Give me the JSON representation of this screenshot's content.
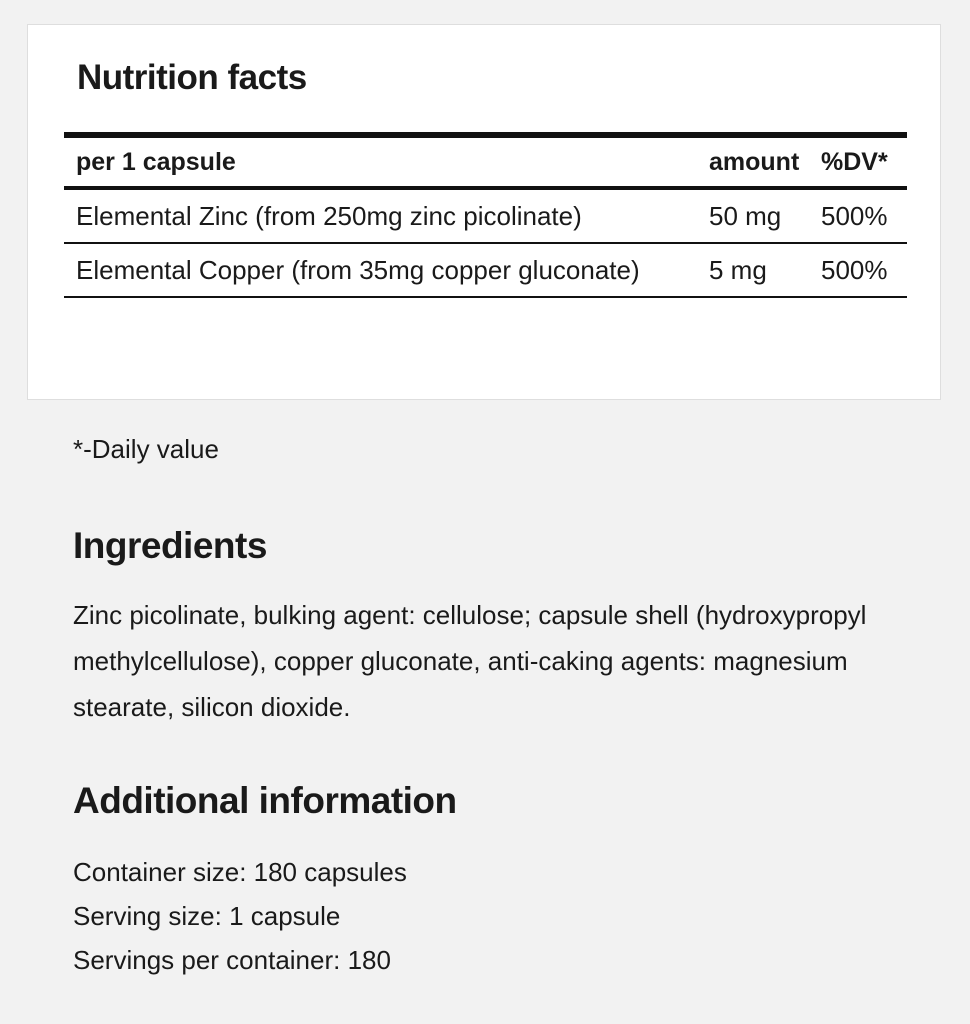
{
  "nutrition": {
    "title": "Nutrition facts",
    "headers": {
      "item": "per 1 capsule",
      "amount": "amount",
      "dv": "%DV*"
    },
    "rows": [
      {
        "name": "Elemental Zinc (from 250mg zinc picolinate)",
        "amount": "50 mg",
        "dv": "500%"
      },
      {
        "name": "Elemental Copper (from 35mg copper gluconate)",
        "amount": "5 mg",
        "dv": "500%"
      }
    ]
  },
  "footnote": "*-Daily value",
  "ingredients": {
    "title": "Ingredients",
    "text": "Zinc picolinate, bulking agent: cellulose; capsule shell (hydroxypropyl methylcellulose), copper gluconate, anti-caking agents: magnesium stearate, silicon dioxide."
  },
  "additional": {
    "title": "Additional information",
    "items": [
      "Container size: 180 capsules",
      "Serving size: 1 capsule",
      "Servings per container: 180"
    ]
  }
}
